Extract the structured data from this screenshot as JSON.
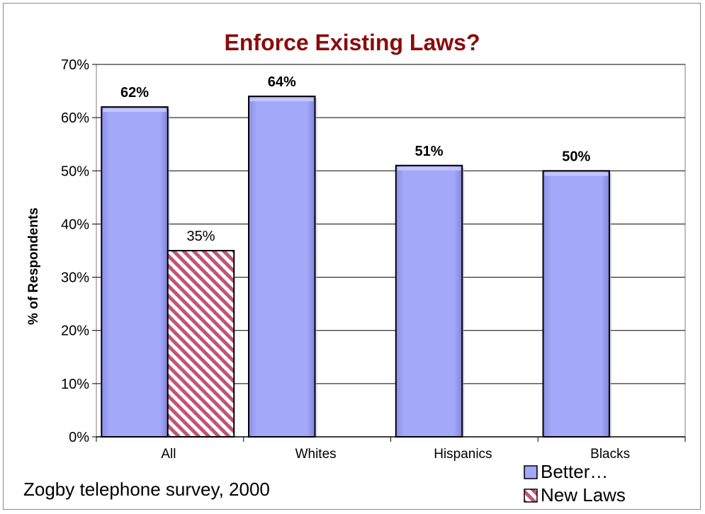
{
  "chart_data": {
    "type": "bar",
    "title": "Enforce Existing Laws?",
    "ylabel": "% of Respondents",
    "xlabel": "",
    "categories": [
      "All",
      "Whites",
      "Hispanics",
      "Blacks"
    ],
    "yticks": [
      "0%",
      "10%",
      "20%",
      "30%",
      "40%",
      "50%",
      "60%",
      "70%"
    ],
    "ylim": [
      0,
      70
    ],
    "grid": true,
    "legend_position": "bottom-right",
    "series": [
      {
        "name": "Better…",
        "values": [
          62,
          64,
          51,
          50
        ],
        "labels": [
          "62%",
          "64%",
          "51%",
          "50%"
        ],
        "color": "#a3a8f8",
        "pattern": "solid"
      },
      {
        "name": "New Laws",
        "values": [
          35,
          null,
          null,
          null
        ],
        "labels": [
          "35%",
          "",
          "",
          ""
        ],
        "color": "#c25473",
        "pattern": "diagonal-stripes"
      }
    ]
  },
  "title_color": "#8b0b0b",
  "footnote": "Zogby telephone survey, 2000"
}
